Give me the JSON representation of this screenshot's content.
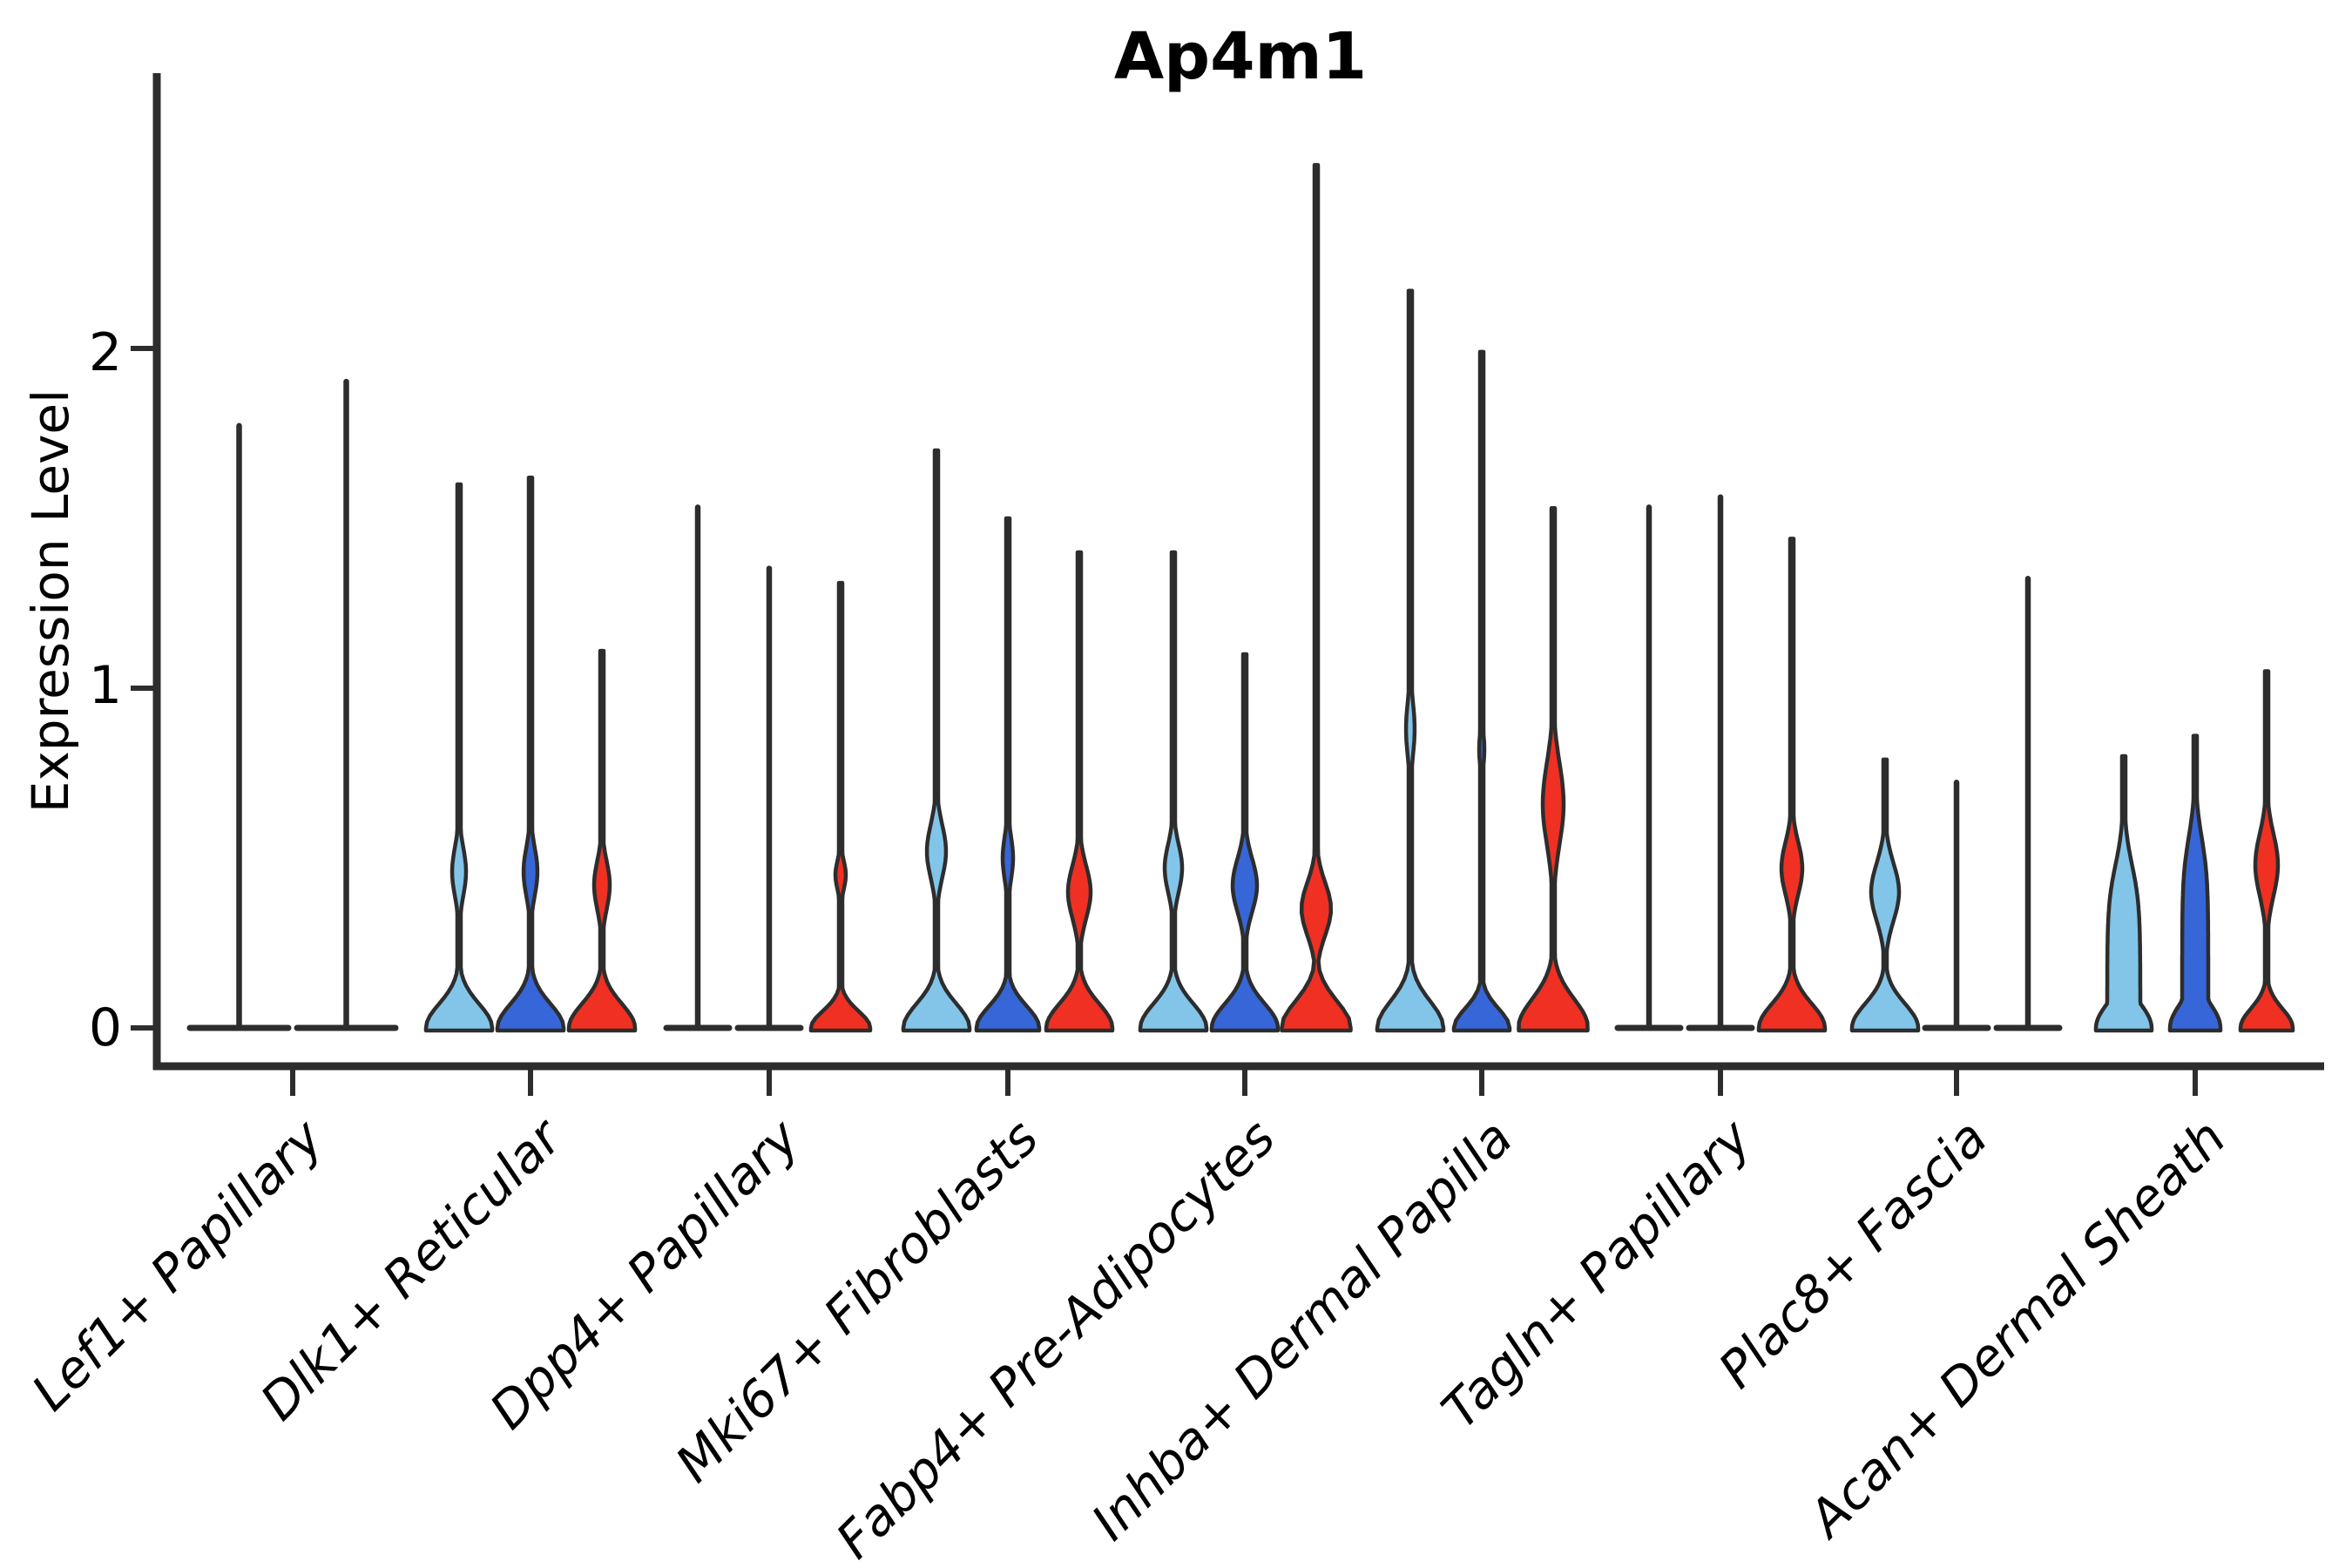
{
  "title": "Ap4m1",
  "axes": {
    "ylabel": "Expression Level",
    "ytick_labels": [
      "0",
      "1",
      "2"
    ]
  },
  "chart_data": {
    "type": "violin",
    "title": "Ap4m1",
    "ylabel": "Expression Level",
    "xlabel": "",
    "yticks": [
      0,
      1,
      2
    ],
    "ylim": [
      0,
      2.65
    ],
    "grid": false,
    "legend": "none",
    "series_colors": {
      "series_1": "#82C5E9",
      "series_2": "#3766D8",
      "series_3": "#EF3022"
    },
    "outline_color": "#2D2D2D",
    "categories": [
      "Lef1+ Papillary",
      "Dlk1+ Reticular",
      "Dpp4+ Papillary",
      "Mki67+ Fibroblasts",
      "Fabp4+ Pre-Adipocytes",
      "Inhba+ Dermal Papilla",
      "Tagln+ Papillary",
      "Plac8+ Fascia",
      "Acan+ Dermal Sheath"
    ],
    "groups": [
      {
        "category": "Lef1+ Papillary",
        "violins": [
          {
            "series": "series_1",
            "shape": "flat",
            "max": 1.78
          },
          {
            "series": "series_2",
            "shape": "flat",
            "max": 1.91
          }
        ]
      },
      {
        "category": "Dlk1+ Reticular",
        "violins": [
          {
            "series": "series_1",
            "shape": "bulge",
            "max": 1.6,
            "base": {
              "w": 38,
              "decay": 0.1
            },
            "bulge": {
              "peak": 0.46,
              "sigma": 0.1,
              "w": 8
            }
          },
          {
            "series": "series_2",
            "shape": "bulge",
            "max": 1.62,
            "base": {
              "w": 38,
              "decay": 0.1
            },
            "bulge": {
              "peak": 0.46,
              "sigma": 0.1,
              "w": 8
            }
          },
          {
            "series": "series_3",
            "shape": "bulge",
            "max": 1.11,
            "base": {
              "w": 38,
              "decay": 0.1
            },
            "bulge": {
              "peak": 0.42,
              "sigma": 0.1,
              "w": 9
            }
          }
        ]
      },
      {
        "category": "Dpp4+ Papillary",
        "violins": [
          {
            "series": "series_1",
            "shape": "flat",
            "max": 1.54
          },
          {
            "series": "series_2",
            "shape": "flat",
            "max": 1.36
          },
          {
            "series": "series_3",
            "shape": "bulge",
            "max": 1.31,
            "base": {
              "w": 34,
              "decay": 0.07
            },
            "bulge": {
              "peak": 0.45,
              "sigma": 0.06,
              "w": 6
            }
          }
        ]
      },
      {
        "category": "Mki67+ Fibroblasts",
        "violins": [
          {
            "series": "series_1",
            "shape": "bulge",
            "max": 1.7,
            "base": {
              "w": 38,
              "decay": 0.1
            },
            "bulge": {
              "peak": 0.52,
              "sigma": 0.11,
              "w": 11
            }
          },
          {
            "series": "series_2",
            "shape": "bulge",
            "max": 1.5,
            "base": {
              "w": 36,
              "decay": 0.09
            },
            "bulge": {
              "peak": 0.5,
              "sigma": 0.09,
              "w": 6
            }
          },
          {
            "series": "series_3",
            "shape": "bulge",
            "max": 1.4,
            "base": {
              "w": 38,
              "decay": 0.1
            },
            "bulge": {
              "peak": 0.4,
              "sigma": 0.11,
              "w": 13
            }
          }
        ]
      },
      {
        "category": "Fabp4+ Pre-Adipocytes",
        "violins": [
          {
            "series": "series_1",
            "shape": "bulge",
            "max": 1.4,
            "base": {
              "w": 38,
              "decay": 0.1
            },
            "bulge": {
              "peak": 0.47,
              "sigma": 0.1,
              "w": 10
            }
          },
          {
            "series": "series_2",
            "shape": "bulge",
            "max": 1.1,
            "base": {
              "w": 38,
              "decay": 0.1
            },
            "bulge": {
              "peak": 0.42,
              "sigma": 0.11,
              "w": 14
            }
          },
          {
            "series": "series_3",
            "shape": "bulge",
            "max": 2.54,
            "base": {
              "w": 40,
              "decay": 0.11
            },
            "bulge": {
              "peak": 0.35,
              "sigma": 0.11,
              "w": 17
            }
          }
        ]
      },
      {
        "category": "Inhba+ Dermal Papilla",
        "violins": [
          {
            "series": "series_1",
            "shape": "bulge",
            "max": 2.17,
            "base": {
              "w": 38,
              "decay": 0.11
            },
            "bulge": {
              "peak": 0.88,
              "sigma": 0.11,
              "w": 5
            }
          },
          {
            "series": "series_2",
            "shape": "bulge",
            "max": 1.99,
            "base": {
              "w": 32,
              "decay": 0.08
            },
            "bulge": {
              "peak": 0.82,
              "sigma": 0.07,
              "w": 3
            }
          },
          {
            "series": "series_3",
            "shape": "bulge",
            "max": 1.53,
            "base": {
              "w": 40,
              "decay": 0.12
            },
            "bulge": {
              "peak": 0.66,
              "sigma": 0.17,
              "w": 12
            }
          }
        ]
      },
      {
        "category": "Tagln+ Papillary",
        "violins": [
          {
            "series": "series_1",
            "shape": "flat",
            "max": 1.54
          },
          {
            "series": "series_2",
            "shape": "flat",
            "max": 1.57
          },
          {
            "series": "series_3",
            "shape": "bulge",
            "max": 1.44,
            "base": {
              "w": 38,
              "decay": 0.1
            },
            "bulge": {
              "peak": 0.47,
              "sigma": 0.11,
              "w": 12
            }
          }
        ]
      },
      {
        "category": "Plac8+ Fascia",
        "violins": [
          {
            "series": "series_1",
            "shape": "bulge",
            "max": 0.79,
            "base": {
              "w": 38,
              "decay": 0.1
            },
            "bulge": {
              "peak": 0.4,
              "sigma": 0.12,
              "w": 16
            }
          },
          {
            "series": "series_2",
            "shape": "flat",
            "max": 0.73
          },
          {
            "series": "series_3",
            "shape": "flat",
            "max": 1.33
          }
        ]
      },
      {
        "category": "Acan+ Dermal Sheath",
        "violins": [
          {
            "series": "series_1",
            "shape": "column",
            "max": 0.8,
            "base": {
              "w": 32,
              "decay": 0.1
            },
            "col": {
              "w": 19,
              "top": 0.48
            }
          },
          {
            "series": "series_2",
            "shape": "column",
            "max": 0.86,
            "base": {
              "w": 29,
              "decay": 0.1
            },
            "col": {
              "w": 15,
              "top": 0.56
            }
          },
          {
            "series": "series_3",
            "shape": "bulge",
            "max": 1.05,
            "base": {
              "w": 30,
              "decay": 0.08
            },
            "bulge": {
              "peak": 0.48,
              "sigma": 0.13,
              "w": 13
            }
          }
        ]
      }
    ]
  }
}
